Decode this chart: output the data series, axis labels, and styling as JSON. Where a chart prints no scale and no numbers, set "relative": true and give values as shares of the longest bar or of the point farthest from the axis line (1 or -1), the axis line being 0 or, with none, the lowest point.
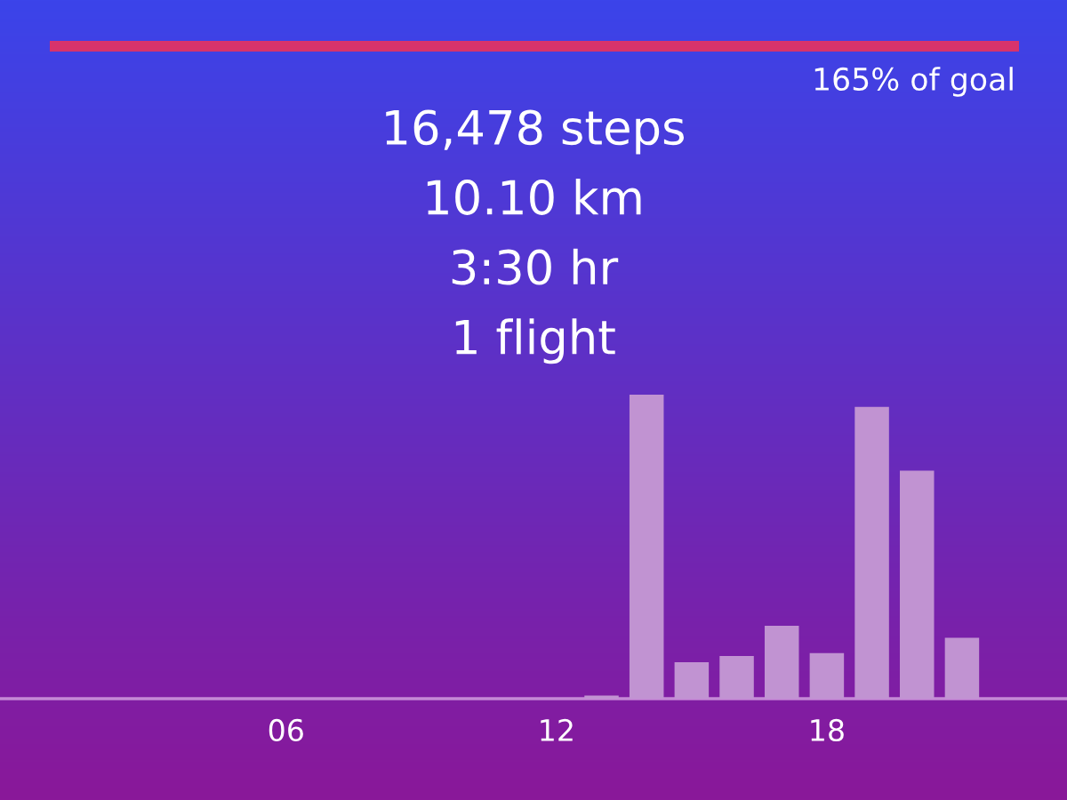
{
  "chart_data": {
    "type": "bar",
    "relative": true,
    "x": [
      13,
      14,
      15,
      16,
      17,
      18,
      19,
      20,
      21
    ],
    "values": [
      0.01,
      1.0,
      0.12,
      0.14,
      0.24,
      0.15,
      0.96,
      0.75,
      0.2
    ],
    "color": "#c193d2",
    "xlim": [
      -0.35,
      23.33
    ],
    "xticks": [
      {
        "value": 6,
        "label": "06"
      },
      12,
      18
    ],
    "annotations": [
      "165% of goal",
      "16,478 steps",
      "10.10 km",
      "3:30 hr",
      "1 flight"
    ]
  }
}
